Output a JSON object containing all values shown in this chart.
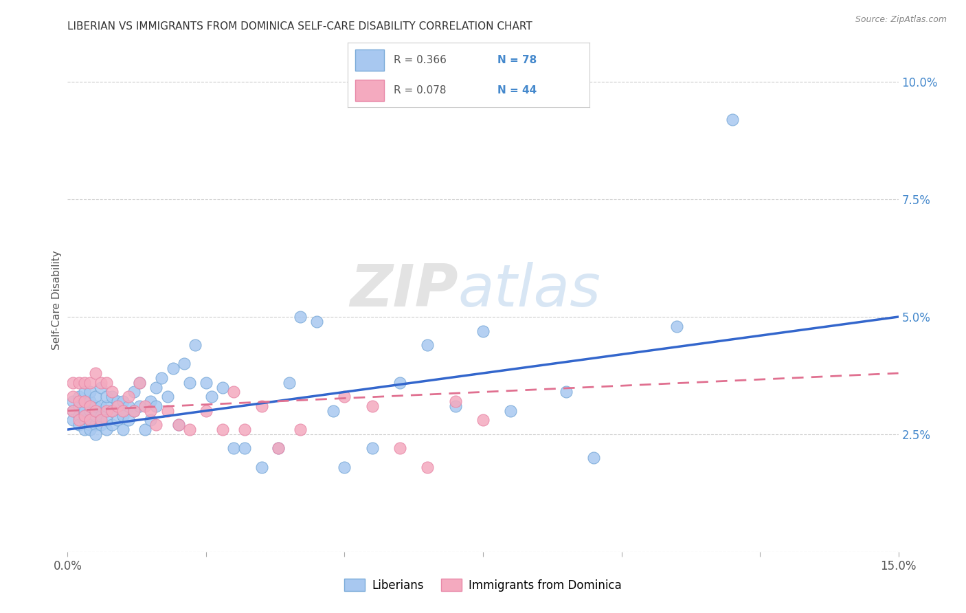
{
  "title": "LIBERIAN VS IMMIGRANTS FROM DOMINICA SELF-CARE DISABILITY CORRELATION CHART",
  "source": "Source: ZipAtlas.com",
  "ylabel": "Self-Care Disability",
  "xlim": [
    0.0,
    0.15
  ],
  "ylim": [
    0.0,
    0.107
  ],
  "legend_blue_R": "R = 0.366",
  "legend_blue_N": "N = 78",
  "legend_pink_R": "R = 0.078",
  "legend_pink_N": "N = 44",
  "blue_color": "#A8C8F0",
  "blue_edge_color": "#7aaad8",
  "pink_color": "#F4AABF",
  "pink_edge_color": "#e888a8",
  "blue_line_color": "#3366CC",
  "pink_line_color": "#E07090",
  "watermark_zip": "ZIP",
  "watermark_atlas": "atlas",
  "background_color": "#ffffff",
  "grid_color": "#cccccc",
  "blue_scatter_x": [
    0.001,
    0.001,
    0.001,
    0.002,
    0.002,
    0.002,
    0.002,
    0.003,
    0.003,
    0.003,
    0.003,
    0.003,
    0.004,
    0.004,
    0.004,
    0.004,
    0.004,
    0.005,
    0.005,
    0.005,
    0.005,
    0.005,
    0.006,
    0.006,
    0.006,
    0.006,
    0.007,
    0.007,
    0.007,
    0.007,
    0.008,
    0.008,
    0.008,
    0.009,
    0.009,
    0.01,
    0.01,
    0.01,
    0.011,
    0.011,
    0.012,
    0.012,
    0.013,
    0.013,
    0.014,
    0.015,
    0.015,
    0.016,
    0.016,
    0.017,
    0.018,
    0.019,
    0.02,
    0.021,
    0.022,
    0.023,
    0.025,
    0.026,
    0.028,
    0.03,
    0.032,
    0.035,
    0.038,
    0.04,
    0.042,
    0.045,
    0.048,
    0.05,
    0.055,
    0.06,
    0.065,
    0.07,
    0.075,
    0.08,
    0.09,
    0.095,
    0.11,
    0.12
  ],
  "blue_scatter_y": [
    0.03,
    0.032,
    0.028,
    0.029,
    0.031,
    0.027,
    0.033,
    0.028,
    0.03,
    0.032,
    0.026,
    0.034,
    0.027,
    0.03,
    0.032,
    0.026,
    0.034,
    0.027,
    0.029,
    0.031,
    0.025,
    0.033,
    0.027,
    0.029,
    0.031,
    0.035,
    0.026,
    0.028,
    0.031,
    0.033,
    0.027,
    0.03,
    0.033,
    0.028,
    0.032,
    0.026,
    0.029,
    0.032,
    0.028,
    0.031,
    0.03,
    0.034,
    0.031,
    0.036,
    0.026,
    0.028,
    0.032,
    0.031,
    0.035,
    0.037,
    0.033,
    0.039,
    0.027,
    0.04,
    0.036,
    0.044,
    0.036,
    0.033,
    0.035,
    0.022,
    0.022,
    0.018,
    0.022,
    0.036,
    0.05,
    0.049,
    0.03,
    0.018,
    0.022,
    0.036,
    0.044,
    0.031,
    0.047,
    0.03,
    0.034,
    0.02,
    0.048,
    0.092
  ],
  "pink_scatter_x": [
    0.001,
    0.001,
    0.001,
    0.002,
    0.002,
    0.002,
    0.003,
    0.003,
    0.003,
    0.004,
    0.004,
    0.004,
    0.005,
    0.005,
    0.006,
    0.006,
    0.007,
    0.007,
    0.008,
    0.008,
    0.009,
    0.01,
    0.011,
    0.012,
    0.013,
    0.014,
    0.015,
    0.016,
    0.018,
    0.02,
    0.022,
    0.025,
    0.028,
    0.03,
    0.032,
    0.035,
    0.038,
    0.042,
    0.05,
    0.055,
    0.06,
    0.065,
    0.07,
    0.075
  ],
  "pink_scatter_y": [
    0.03,
    0.033,
    0.036,
    0.028,
    0.032,
    0.036,
    0.029,
    0.032,
    0.036,
    0.028,
    0.031,
    0.036,
    0.03,
    0.038,
    0.028,
    0.036,
    0.03,
    0.036,
    0.03,
    0.034,
    0.031,
    0.03,
    0.033,
    0.03,
    0.036,
    0.031,
    0.03,
    0.027,
    0.03,
    0.027,
    0.026,
    0.03,
    0.026,
    0.034,
    0.026,
    0.031,
    0.022,
    0.026,
    0.033,
    0.031,
    0.022,
    0.018,
    0.032,
    0.028
  ],
  "blue_trend_x": [
    0.0,
    0.15
  ],
  "blue_trend_y_start": 0.026,
  "blue_trend_y_end": 0.05,
  "pink_trend_y_start": 0.03,
  "pink_trend_y_end": 0.038,
  "ytick_vals": [
    0.0,
    0.025,
    0.05,
    0.075,
    0.1
  ],
  "ytick_labels": [
    "",
    "2.5%",
    "5.0%",
    "7.5%",
    "10.0%"
  ],
  "xtick_positions": [
    0.0,
    0.025,
    0.05,
    0.075,
    0.1,
    0.125,
    0.15
  ],
  "xtick_labels": [
    "0.0%",
    "",
    "",
    "",
    "",
    "",
    "15.0%"
  ]
}
